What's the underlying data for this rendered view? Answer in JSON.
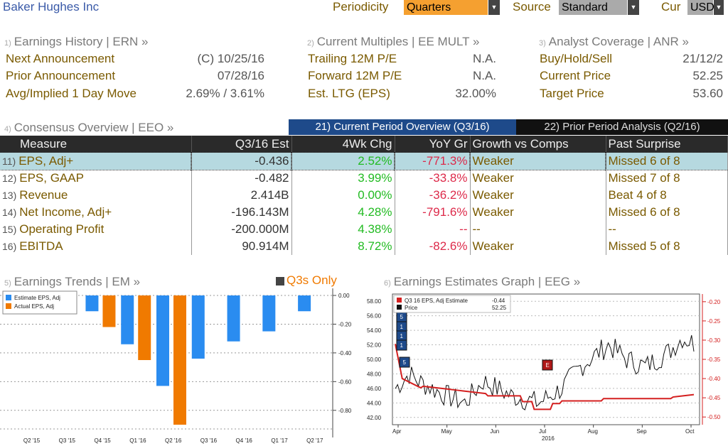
{
  "header": {
    "company": "Baker Hughes Inc",
    "periodicity_label": "Periodicity",
    "periodicity_value": "Quarters",
    "source_label": "Source",
    "source_value": "Standard",
    "cur_label": "Cur",
    "cur_value": "USD"
  },
  "panels": {
    "earnings_history": {
      "num": "1)",
      "title": "Earnings History | ERN »",
      "rows": [
        {
          "label": "Next Announcement",
          "value": "(C)  10/25/16"
        },
        {
          "label": "Prior Announcement",
          "value": "07/28/16"
        },
        {
          "label": "Avg/Implied 1 Day Move",
          "value": "2.69% / 3.61%"
        }
      ]
    },
    "current_multiples": {
      "num": "2)",
      "title": "Current Multiples | EE MULT »",
      "rows": [
        {
          "label": "Trailing 12M P/E",
          "value": "N.A."
        },
        {
          "label": "Forward 12M P/E",
          "value": "N.A."
        },
        {
          "label": "Est. LTG (EPS)",
          "value": "32.00%"
        }
      ]
    },
    "analyst_coverage": {
      "num": "3)",
      "title": "Analyst Coverage | ANR »",
      "rows": [
        {
          "label": "Buy/Hold/Sell",
          "value": "21/12/2"
        },
        {
          "label": "Current Price",
          "value": "52.25"
        },
        {
          "label": "Target Price",
          "value": "53.60"
        }
      ]
    }
  },
  "consensus": {
    "num": "4)",
    "title": "Consensus Overview | EEO »",
    "tab_current": "21) Current Period Overview (Q3/16)",
    "tab_prior": "22) Prior Period Analysis (Q2/16)",
    "columns": [
      "Measure",
      "Q3/16 Est",
      "4Wk Chg",
      "YoY Gr",
      "Growth vs Comps",
      "Past Surprise"
    ],
    "rows": [
      {
        "num": "11)",
        "measure": "EPS, Adj+",
        "est": "-0.436",
        "chg": "2.52%",
        "yoy": "-771.3%",
        "growth": "Weaker",
        "surprise": "Missed 6 of 8"
      },
      {
        "num": "12)",
        "measure": "EPS, GAAP",
        "est": "-0.482",
        "chg": "3.99%",
        "yoy": "-33.8%",
        "growth": "Weaker",
        "surprise": "Missed 7 of 8"
      },
      {
        "num": "13)",
        "measure": "Revenue",
        "est": "2.414B",
        "chg": "0.00%",
        "yoy": "-36.2%",
        "growth": "Weaker",
        "surprise": "Beat 4 of 8"
      },
      {
        "num": "14)",
        "measure": "Net Income, Adj+",
        "est": "-196.143M",
        "chg": "4.28%",
        "yoy": "-791.6%",
        "growth": "Weaker",
        "surprise": "Missed 6 of 8"
      },
      {
        "num": "15)",
        "measure": "Operating Profit",
        "est": "-200.000M",
        "chg": "4.38%",
        "yoy": "--",
        "growth": "--",
        "surprise": "--"
      },
      {
        "num": "16)",
        "measure": "EBITDA",
        "est": "90.914M",
        "chg": "8.72%",
        "yoy": "-82.6%",
        "growth": "Weaker",
        "surprise": "Missed 5 of 8"
      }
    ]
  },
  "trends": {
    "num": "5)",
    "title": "Earnings Trends | EM »",
    "toggle": "Q3s Only"
  },
  "graph": {
    "num": "6)",
    "title": "Earnings Estimates Graph | EEG »"
  },
  "colors": {
    "estimate": "#2a8cf0",
    "actual": "#f07a00",
    "price": "#111111",
    "eps_line": "#d42020"
  },
  "chart_data": [
    {
      "type": "bar",
      "categories": [
        "Q2 '15",
        "Q3 '15",
        "Q4 '15",
        "Q1 '16",
        "Q2 '16",
        "Q3 '16",
        "Q4 '16",
        "Q1 '17",
        "Q2 '17"
      ],
      "series": [
        {
          "name": "Estimate EPS, Adj",
          "values": [
            null,
            null,
            -0.11,
            -0.34,
            -0.63,
            -0.44,
            -0.32,
            -0.25,
            -0.11
          ]
        },
        {
          "name": "Actual EPS, Adj",
          "values": [
            null,
            null,
            -0.22,
            -0.45,
            -0.9,
            null,
            null,
            null,
            null
          ]
        }
      ],
      "y_ticks": [
        "0.00",
        "-0.20",
        "-0.40",
        "-0.60",
        "-0.80"
      ],
      "ylim": [
        -0.9,
        0.0
      ]
    },
    {
      "type": "line",
      "legend": [
        {
          "name": "Q3 16 EPS, Adj Estimate",
          "value": "-0.44"
        },
        {
          "name": "Price",
          "value": "52.25"
        }
      ],
      "x_ticks": [
        "Apr",
        "May",
        "Jun",
        "Jul",
        "Aug",
        "Sep",
        "Oct"
      ],
      "year_label": "2016",
      "left_ticks": [
        "58.00",
        "56.00",
        "54.00",
        "52.00",
        "50.00",
        "48.00",
        "46.00",
        "44.00",
        "42.00"
      ],
      "right_ticks": [
        "-0.20",
        "-0.25",
        "-0.30",
        "-0.35",
        "-0.40",
        "-0.45",
        "-0.50"
      ],
      "left_ylim": [
        41.0,
        59.0
      ],
      "right_ylim": [
        -0.52,
        -0.18
      ],
      "markers": [
        "5",
        "1",
        "1",
        "1",
        "5",
        "E"
      ]
    }
  ]
}
